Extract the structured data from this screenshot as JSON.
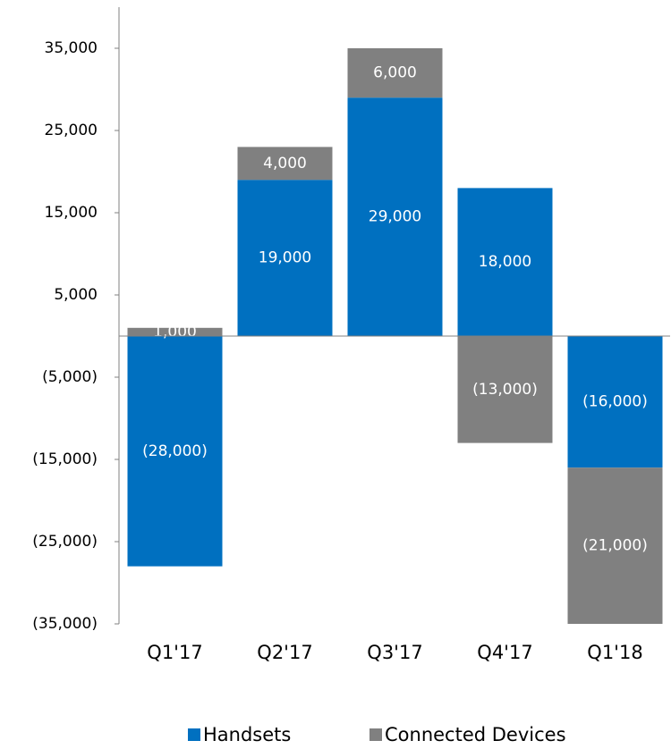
{
  "chart_data": {
    "type": "stacked_bar",
    "categories": [
      "Q1'17",
      "Q2'17",
      "Q3'17",
      "Q4'17",
      "Q1'18"
    ],
    "series": [
      {
        "name": "Handsets",
        "color": "#0070c0",
        "values": [
          -28000,
          19000,
          29000,
          18000,
          -16000
        ],
        "value_labels": [
          "(28,000)",
          "19,000",
          "29,000",
          "18,000",
          "(16,000)"
        ]
      },
      {
        "name": "Connected Devices",
        "color": "#808080",
        "values": [
          1000,
          4000,
          6000,
          -13000,
          -21000
        ],
        "value_labels": [
          "1,000",
          "4,000",
          "6,000",
          "(13,000)",
          "(21,000)"
        ]
      }
    ],
    "ylim": [
      -35000,
      40000
    ],
    "yticks": [
      {
        "value": 35000,
        "label": "35,000"
      },
      {
        "value": 25000,
        "label": "25,000"
      },
      {
        "value": 15000,
        "label": "15,000"
      },
      {
        "value": 5000,
        "label": "5,000"
      },
      {
        "value": -5000,
        "label": "(5,000)"
      },
      {
        "value": -15000,
        "label": "(15,000)"
      },
      {
        "value": -25000,
        "label": "(25,000)"
      },
      {
        "value": -35000,
        "label": "(35,000)"
      }
    ],
    "legend": "bottom"
  }
}
